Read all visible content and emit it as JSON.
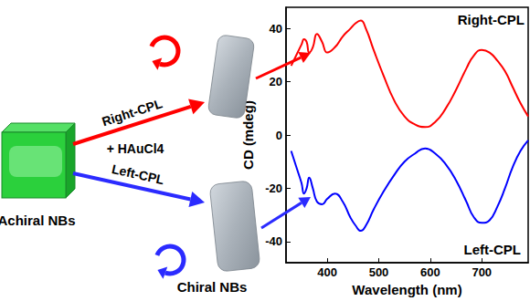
{
  "diagram": {
    "start": {
      "label": "Achiral NBs"
    },
    "right_arrow": {
      "label": "Right-CPL",
      "color": "#ff0000"
    },
    "reagent": "+ HAuCl4",
    "left_arrow": {
      "label": "Left-CPL",
      "color": "#2b2bff"
    },
    "product": {
      "label": "Chiral NBs"
    }
  },
  "chart_data": {
    "type": "line",
    "x_label": "Wavelength (nm)",
    "y_label": "CD (mdeg)",
    "xlim": [
      320,
      790
    ],
    "xticks": [
      400,
      500,
      600,
      700
    ],
    "ylim": [
      -48,
      48
    ],
    "yticks": [
      -40,
      -20,
      0,
      20,
      40
    ],
    "grid": false,
    "x": [
      330,
      340,
      350,
      355,
      360,
      365,
      372,
      380,
      390,
      400,
      415,
      430,
      445,
      455,
      465,
      475,
      490,
      510,
      530,
      550,
      570,
      590,
      610,
      630,
      650,
      670,
      685,
      700,
      715,
      730,
      745,
      760,
      775,
      790
    ],
    "series": [
      {
        "name": "Right-CPL",
        "color": "#ff0000",
        "values": [
          26,
          30,
          34,
          36,
          35,
          31,
          33,
          38,
          35,
          31,
          33,
          37,
          40,
          42,
          43,
          40,
          32,
          22,
          13,
          7,
          4,
          3,
          5,
          10,
          17,
          25,
          30,
          32,
          31,
          28,
          24,
          18,
          12,
          7
        ]
      },
      {
        "name": "Left-CPL",
        "color": "#0000ff",
        "values": [
          -6,
          -12,
          -18,
          -22,
          -20,
          -16,
          -20,
          -25,
          -26,
          -24,
          -22,
          -25,
          -31,
          -34,
          -36,
          -34,
          -28,
          -21,
          -15,
          -10,
          -7,
          -5,
          -7,
          -11,
          -17,
          -25,
          -31,
          -33,
          -32,
          -27,
          -20,
          -12,
          -6,
          -2
        ]
      }
    ]
  }
}
